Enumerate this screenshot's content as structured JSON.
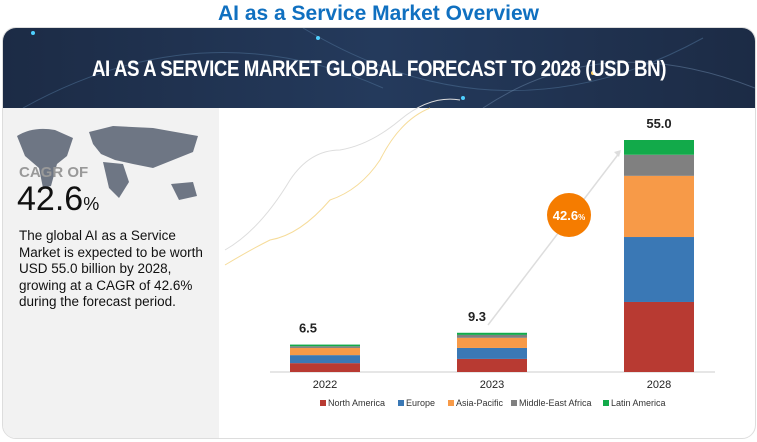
{
  "page_title": "AI as a Service Market Overview",
  "banner_title": "AI AS A SERVICE MARKET GLOBAL FORECAST TO 2028 (USD BN)",
  "cagr": {
    "label": "CAGR OF",
    "value": "42.6",
    "unit": "%"
  },
  "description": "The global AI as a Service Market is expected to be worth USD 55.0 billion by 2028, growing at a CAGR of 42.6% during the forecast period.",
  "chart_data": {
    "type": "bar",
    "stacked": true,
    "title": "AI AS A SERVICE MARKET GLOBAL FORECAST TO 2028 (USD BN)",
    "categories": [
      "2022",
      "2023",
      "2028"
    ],
    "totals": [
      "6.5",
      "9.3",
      "55.0"
    ],
    "series": [
      {
        "name": "North America",
        "color": "#b83a32",
        "values": [
          2.1,
          3.1,
          16.6
        ]
      },
      {
        "name": "Europe",
        "color": "#3a78b5",
        "values": [
          1.9,
          2.6,
          15.4
        ]
      },
      {
        "name": "Asia-Pacific",
        "color": "#f79a48",
        "values": [
          1.7,
          2.4,
          14.5
        ]
      },
      {
        "name": "Middle-East Africa",
        "color": "#808080",
        "values": [
          0.4,
          0.7,
          5.0
        ]
      },
      {
        "name": "Latin America",
        "color": "#12aa4a",
        "values": [
          0.4,
          0.5,
          3.5
        ]
      }
    ],
    "annotation": {
      "value": "42.6",
      "unit": "%",
      "color": "#f57c00"
    },
    "ylim": [
      0,
      55
    ],
    "legend": "bottom"
  }
}
